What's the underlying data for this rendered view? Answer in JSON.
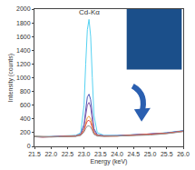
{
  "chart_data": {
    "type": "line",
    "x_label": "Energy (keV)",
    "y_label": "Intensity (counts)",
    "x": [
      21.5,
      21.75,
      22.0,
      22.25,
      22.5,
      22.75,
      22.9,
      23.0,
      23.05,
      23.1,
      23.15,
      23.2,
      23.25,
      23.3,
      23.4,
      23.6,
      24.0,
      24.5,
      25.0,
      25.5,
      26.0
    ],
    "series": [
      {
        "color": "#55d2f2",
        "values": [
          150,
          140,
          145,
          150,
          150,
          160,
          200,
          600,
          1200,
          1700,
          1850,
          1600,
          1000,
          450,
          200,
          160,
          160,
          170,
          180,
          200,
          230
        ]
      },
      {
        "color": "#4a55b8",
        "values": [
          145,
          140,
          140,
          145,
          150,
          155,
          180,
          320,
          530,
          720,
          760,
          680,
          460,
          260,
          170,
          155,
          155,
          165,
          175,
          195,
          225
        ]
      },
      {
        "color": "#8a5aa8",
        "values": [
          140,
          135,
          140,
          145,
          145,
          150,
          175,
          290,
          450,
          600,
          640,
          570,
          390,
          230,
          165,
          150,
          155,
          165,
          175,
          195,
          225
        ]
      },
      {
        "color": "#f0a040",
        "values": [
          145,
          140,
          140,
          140,
          145,
          150,
          170,
          240,
          340,
          420,
          440,
          400,
          300,
          200,
          160,
          150,
          150,
          160,
          170,
          190,
          220
        ]
      },
      {
        "color": "#e04545",
        "values": [
          140,
          135,
          140,
          140,
          145,
          150,
          165,
          230,
          310,
          370,
          380,
          350,
          270,
          190,
          155,
          150,
          150,
          160,
          170,
          190,
          220
        ]
      },
      {
        "color": "#909090",
        "values": [
          140,
          135,
          135,
          140,
          140,
          145,
          160,
          210,
          260,
          295,
          300,
          280,
          230,
          175,
          150,
          145,
          150,
          155,
          165,
          185,
          215
        ]
      }
    ],
    "annotations": [
      {
        "text": "Cd-Kα",
        "x": 23.15,
        "y": 1950
      }
    ],
    "xlim": [
      21.5,
      26.0
    ],
    "xticks": [
      {
        "value": 21.5,
        "label": "21.5"
      },
      {
        "value": 22,
        "label": "22.0"
      },
      {
        "value": 22.5,
        "label": "22.5"
      },
      {
        "value": 23,
        "label": "23.0"
      },
      {
        "value": 23.5,
        "label": "23.5"
      },
      {
        "value": 24,
        "label": "24.0"
      },
      {
        "value": 24.5,
        "label": "24.5"
      },
      {
        "value": 25,
        "label": "25.0"
      },
      {
        "value": 25.5,
        "label": "25.5"
      },
      {
        "value": 26,
        "label": "26.0"
      }
    ],
    "ylim": [
      0,
      2000
    ],
    "yticks": [
      0,
      200,
      400,
      600,
      800,
      1000,
      1200,
      1400,
      1600,
      1800,
      2000
    ],
    "grid": false
  }
}
